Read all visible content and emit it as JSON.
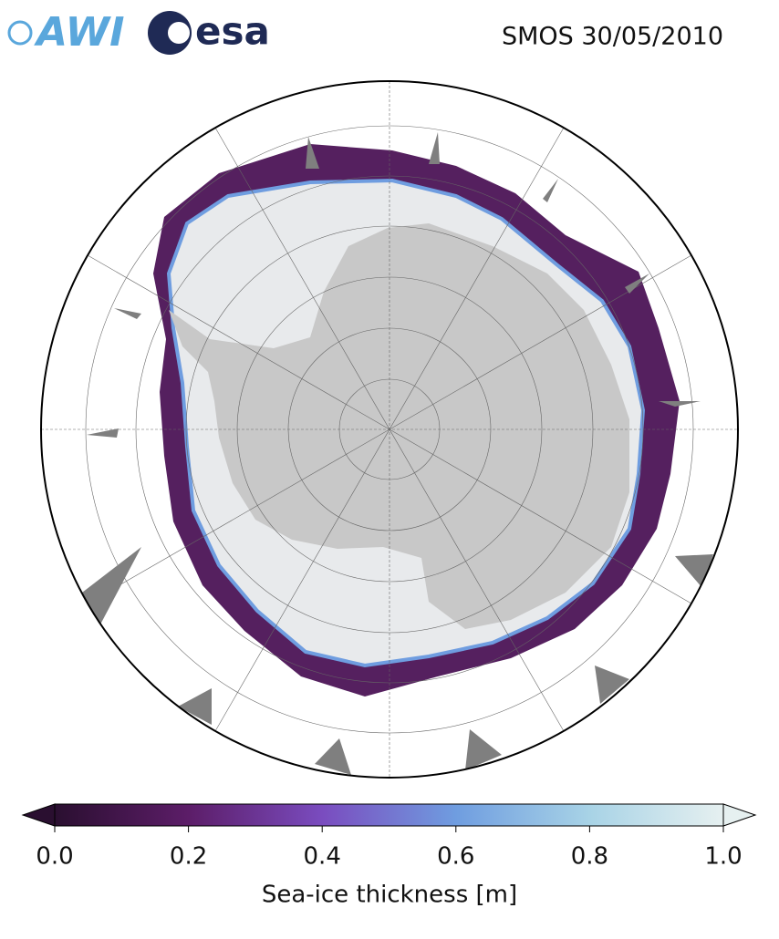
{
  "header": {
    "logos": [
      "AWI",
      "esa"
    ],
    "title": "SMOS 30/05/2010"
  },
  "map": {
    "projection": "south-polar-stereographic",
    "grid": true
  },
  "colorbar": {
    "label": "Sea-ice thickness [m]",
    "lim": [
      0,
      1
    ],
    "ticks": [
      {
        "value": 0,
        "label": "0.0"
      },
      0.2,
      0.4,
      0.6,
      0.8,
      {
        "value": 1,
        "label": "1.0"
      }
    ],
    "colors": [
      "#2a0f30",
      "#5c1d68",
      "#7a4cbf",
      "#6f9de0",
      "#a8d3e6",
      "#e6f0f0"
    ],
    "extend": "both"
  }
}
